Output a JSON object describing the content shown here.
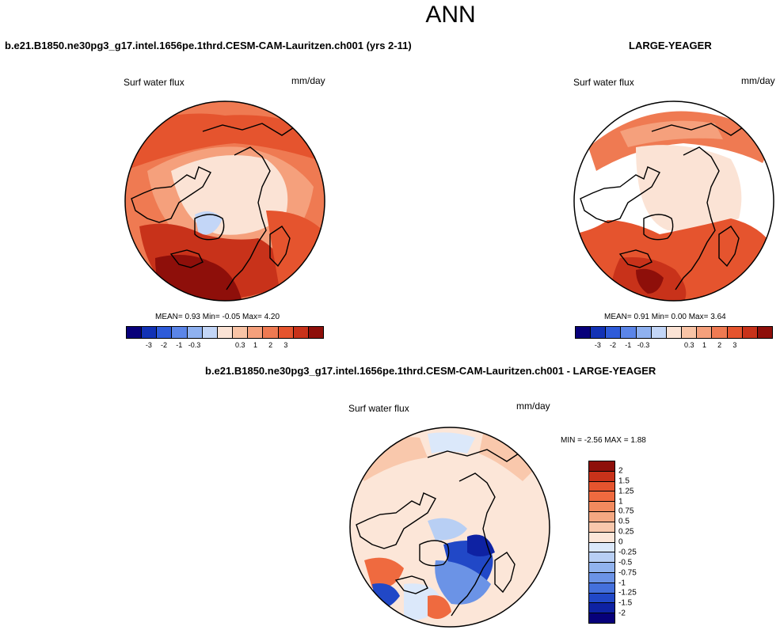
{
  "title": "ANN",
  "panels": [
    {
      "case_title": "b.e21.B1850.ne30pg3_g17.intel.1656pe.1thrd.CESM-CAM-Lauritzen.ch001 (yrs 2-11)",
      "field": "Surf water flux",
      "units": "mm/day",
      "stats": "MEAN=   0.93  Min=  -0.05  Max=   4.20"
    },
    {
      "case_title": "LARGE-YEAGER",
      "field": "Surf water flux",
      "units": "mm/day",
      "stats": "MEAN=   0.91  Min=   0.00  Max=   3.64"
    },
    {
      "case_title": "b.e21.B1850.ne30pg3_g17.intel.1656pe.1thrd.CESM-CAM-Lauritzen.ch001 - LARGE-YEAGER",
      "field": "Surf water flux",
      "units": "mm/day",
      "stats": "MIN =  -2.56 MAX =   1.88"
    }
  ],
  "colorbar_abs": {
    "colors": [
      "#08007a",
      "#1232b5",
      "#2e5bd9",
      "#5b85e8",
      "#8fb1f0",
      "#c3d6f7",
      "#fbe3d5",
      "#f9c4a6",
      "#f5a07c",
      "#ef7a52",
      "#e5542e",
      "#c8321a",
      "#8e0f0a"
    ],
    "tick_labels": [
      "-3",
      "-2",
      "-1",
      "-0.3",
      "0.3",
      "1",
      "2",
      "3"
    ]
  },
  "colorbar_diff": {
    "colors": [
      "#8e0f0a",
      "#c8321a",
      "#e5542e",
      "#ef6a3f",
      "#f28a5e",
      "#f5a882",
      "#f9c8ac",
      "#fce6d8",
      "#dbe8fa",
      "#b8cff4",
      "#91b3ee",
      "#6b93e6",
      "#4470dc",
      "#2148c7",
      "#0e22a3",
      "#07007a"
    ],
    "tick_labels": [
      "2",
      "1.5",
      "1.25",
      "1",
      "0.75",
      "0.5",
      "0.25",
      "0",
      "-0.25",
      "-0.5",
      "-0.75",
      "-1",
      "-1.25",
      "-1.5",
      "-2"
    ]
  }
}
